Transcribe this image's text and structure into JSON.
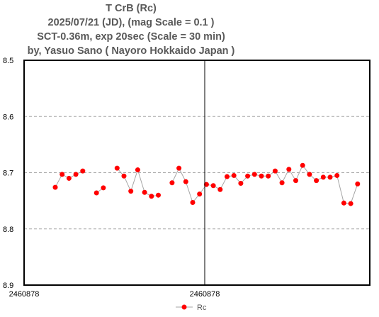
{
  "chart_data": {
    "type": "scatter",
    "title_lines": [
      "T CrB  (Rc)",
      "2025/07/21 (JD),   (mag Scale = 0.1 )",
      "SCT-0.36m, exp 20sec (Scale = 30 min)",
      "by, Yasuo Sano ( Nayoro Hokkaido Japan )"
    ],
    "y_axis": {
      "reversed": true,
      "ylim": [
        8.5,
        8.9
      ],
      "ticks": [
        "8.5",
        "8.6",
        "8.7",
        "8.8",
        "8.9"
      ],
      "grid": "dashed"
    },
    "x_axis": {
      "tick_labels": [
        "2460878",
        "2460878"
      ],
      "midline": true
    },
    "legend": {
      "position": "bottom-center",
      "label": "Rc"
    },
    "colors": {
      "marker": "#ff0000",
      "line": "#a6a6a6"
    },
    "series": [
      {
        "name": "Rc",
        "segments": [
          [
            8.726,
            8.703,
            8.71,
            8.703,
            8.697
          ],
          [
            8.736,
            8.727
          ],
          [
            8.692,
            8.706,
            8.733,
            8.695,
            8.735,
            8.742,
            8.74
          ],
          [
            8.718,
            8.692,
            8.716,
            8.753,
            8.738,
            8.721,
            8.723,
            8.73,
            8.707,
            8.705,
            8.719,
            8.706,
            8.703,
            8.706,
            8.706,
            8.697,
            8.718,
            8.694,
            8.714,
            8.687,
            8.703,
            8.714,
            8.708,
            8.708,
            8.705,
            8.754,
            8.755,
            8.72
          ]
        ]
      }
    ]
  }
}
